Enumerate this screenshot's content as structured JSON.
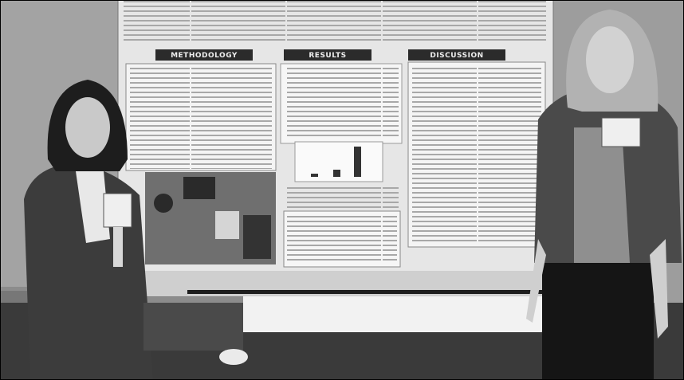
{
  "poster": {
    "sections": [
      "METHODOLOGY",
      "RESULTS",
      "DISCUSSION"
    ]
  }
}
